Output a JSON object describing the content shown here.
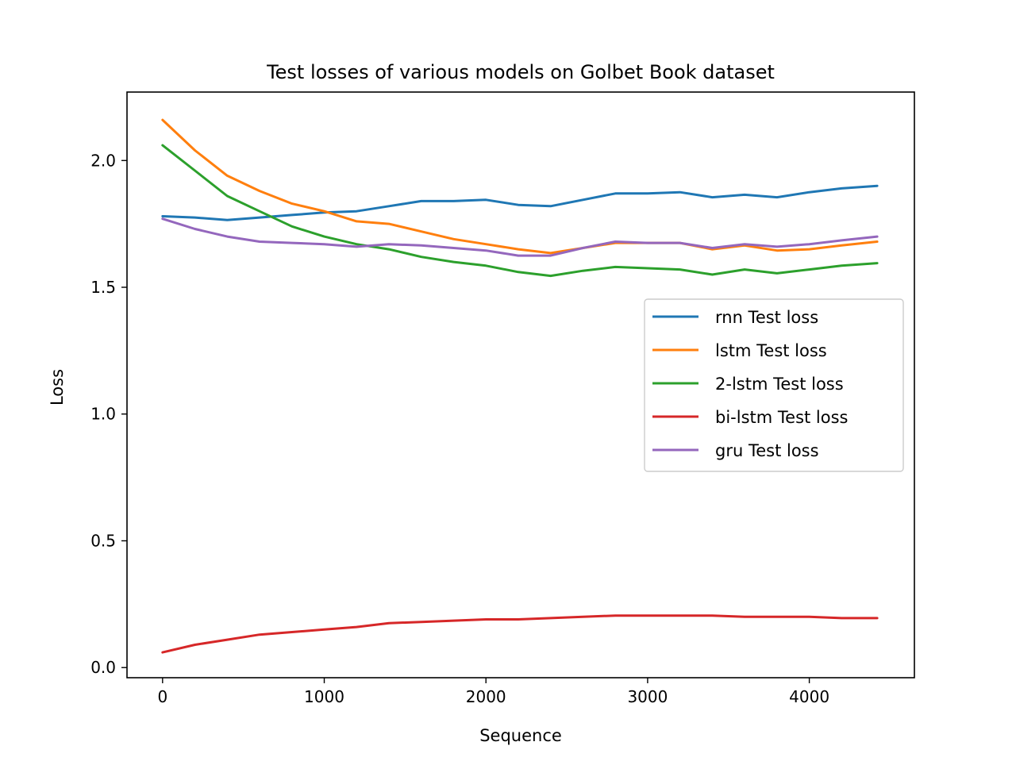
{
  "chart_data": {
    "type": "line",
    "title": "Test losses of various models on Golbet Book dataset",
    "xlabel": "Sequence",
    "ylabel": "Loss",
    "xlim": [
      -220,
      4650
    ],
    "ylim": [
      -0.04,
      2.27
    ],
    "xticks": [
      0,
      1000,
      2000,
      3000,
      4000
    ],
    "xtick_labels": [
      "0",
      "1000",
      "2000",
      "3000",
      "4000"
    ],
    "yticks": [
      0.0,
      0.5,
      1.0,
      1.5,
      2.0
    ],
    "ytick_labels": [
      "0.0",
      "0.5",
      "1.0",
      "1.5",
      "2.0"
    ],
    "grid": false,
    "legend_position": "center-right",
    "x": [
      0,
      200,
      400,
      600,
      800,
      1000,
      1200,
      1400,
      1600,
      1800,
      2000,
      2200,
      2400,
      2600,
      2800,
      3000,
      3200,
      3400,
      3600,
      3800,
      4000,
      4200,
      4420
    ],
    "series": [
      {
        "name": "rnn Test loss",
        "color": "#1f77b4",
        "values": [
          1.78,
          1.775,
          1.765,
          1.775,
          1.785,
          1.795,
          1.8,
          1.82,
          1.84,
          1.84,
          1.845,
          1.825,
          1.82,
          1.845,
          1.87,
          1.87,
          1.875,
          1.855,
          1.865,
          1.855,
          1.875,
          1.89,
          1.9
        ]
      },
      {
        "name": "lstm Test loss",
        "color": "#ff7f0e",
        "values": [
          2.16,
          2.04,
          1.94,
          1.88,
          1.83,
          1.8,
          1.76,
          1.75,
          1.72,
          1.69,
          1.67,
          1.65,
          1.635,
          1.655,
          1.675,
          1.675,
          1.675,
          1.65,
          1.665,
          1.645,
          1.65,
          1.665,
          1.68
        ]
      },
      {
        "name": "2-lstm Test loss",
        "color": "#2ca02c",
        "values": [
          2.06,
          1.96,
          1.86,
          1.8,
          1.74,
          1.7,
          1.67,
          1.65,
          1.62,
          1.6,
          1.585,
          1.56,
          1.545,
          1.565,
          1.58,
          1.575,
          1.57,
          1.55,
          1.57,
          1.555,
          1.57,
          1.585,
          1.595
        ]
      },
      {
        "name": "bi-lstm Test loss",
        "color": "#d62728",
        "values": [
          0.06,
          0.09,
          0.11,
          0.13,
          0.14,
          0.15,
          0.16,
          0.175,
          0.18,
          0.185,
          0.19,
          0.19,
          0.195,
          0.2,
          0.205,
          0.205,
          0.205,
          0.205,
          0.2,
          0.2,
          0.2,
          0.195,
          0.195
        ]
      },
      {
        "name": "gru Test loss",
        "color": "#9467bd",
        "values": [
          1.77,
          1.73,
          1.7,
          1.68,
          1.675,
          1.67,
          1.66,
          1.67,
          1.665,
          1.655,
          1.645,
          1.625,
          1.625,
          1.655,
          1.68,
          1.675,
          1.675,
          1.655,
          1.67,
          1.66,
          1.67,
          1.685,
          1.7
        ]
      }
    ]
  }
}
